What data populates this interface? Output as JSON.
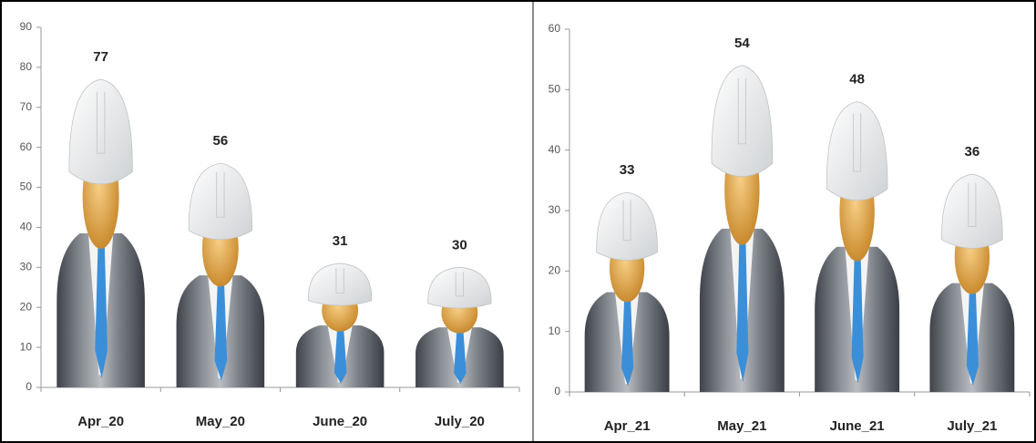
{
  "chart_data": [
    {
      "type": "bar",
      "categories": [
        "Apr_20",
        "May_20",
        "June_20",
        "July_20"
      ],
      "values": [
        77,
        56,
        31,
        30
      ],
      "ylim": [
        0,
        90
      ],
      "yticks": [
        0,
        10,
        20,
        30,
        40,
        50,
        60,
        70,
        80,
        90
      ]
    },
    {
      "type": "bar",
      "categories": [
        "Apr_21",
        "May_21",
        "June_21",
        "July_21"
      ],
      "values": [
        33,
        54,
        48,
        36
      ],
      "ylim": [
        0,
        60
      ],
      "yticks": [
        0,
        10,
        20,
        30,
        40,
        50,
        60
      ]
    }
  ]
}
